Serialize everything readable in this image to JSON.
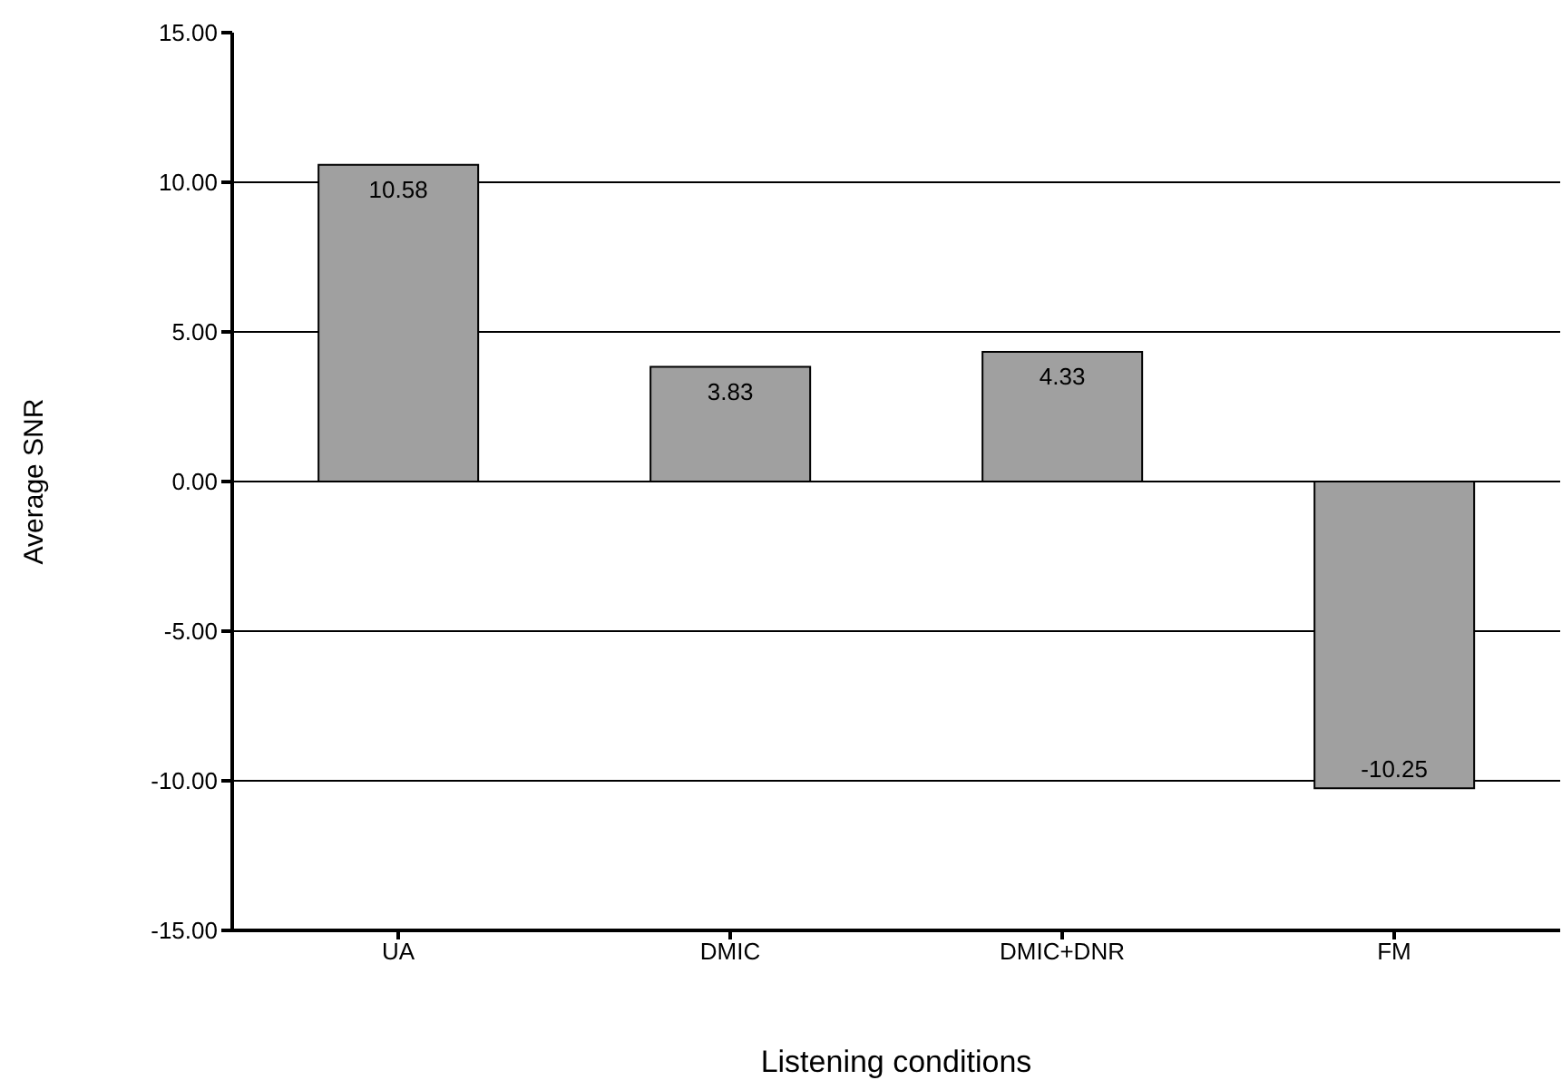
{
  "chart_data": {
    "type": "bar",
    "xlabel": "Listening conditions",
    "ylabel": "Average SNR",
    "categories": [
      "UA",
      "DMIC",
      "DMIC+DNR",
      "FM"
    ],
    "values": [
      10.58,
      3.83,
      4.33,
      -10.25
    ],
    "color": "#a0a0a0",
    "ylim": [
      -15,
      15
    ],
    "yticks": [
      {
        "value": -15,
        "label": "-15.00"
      },
      {
        "value": -10,
        "label": "-10.00"
      },
      {
        "value": -5,
        "label": "-5.00"
      },
      {
        "value": 0,
        "label": "0.00"
      },
      {
        "value": 5,
        "label": "5.00"
      },
      {
        "value": 10,
        "label": "10.00"
      },
      {
        "value": 15,
        "label": "15.00"
      }
    ],
    "grid": "y",
    "data_labels": true,
    "legend": false
  }
}
